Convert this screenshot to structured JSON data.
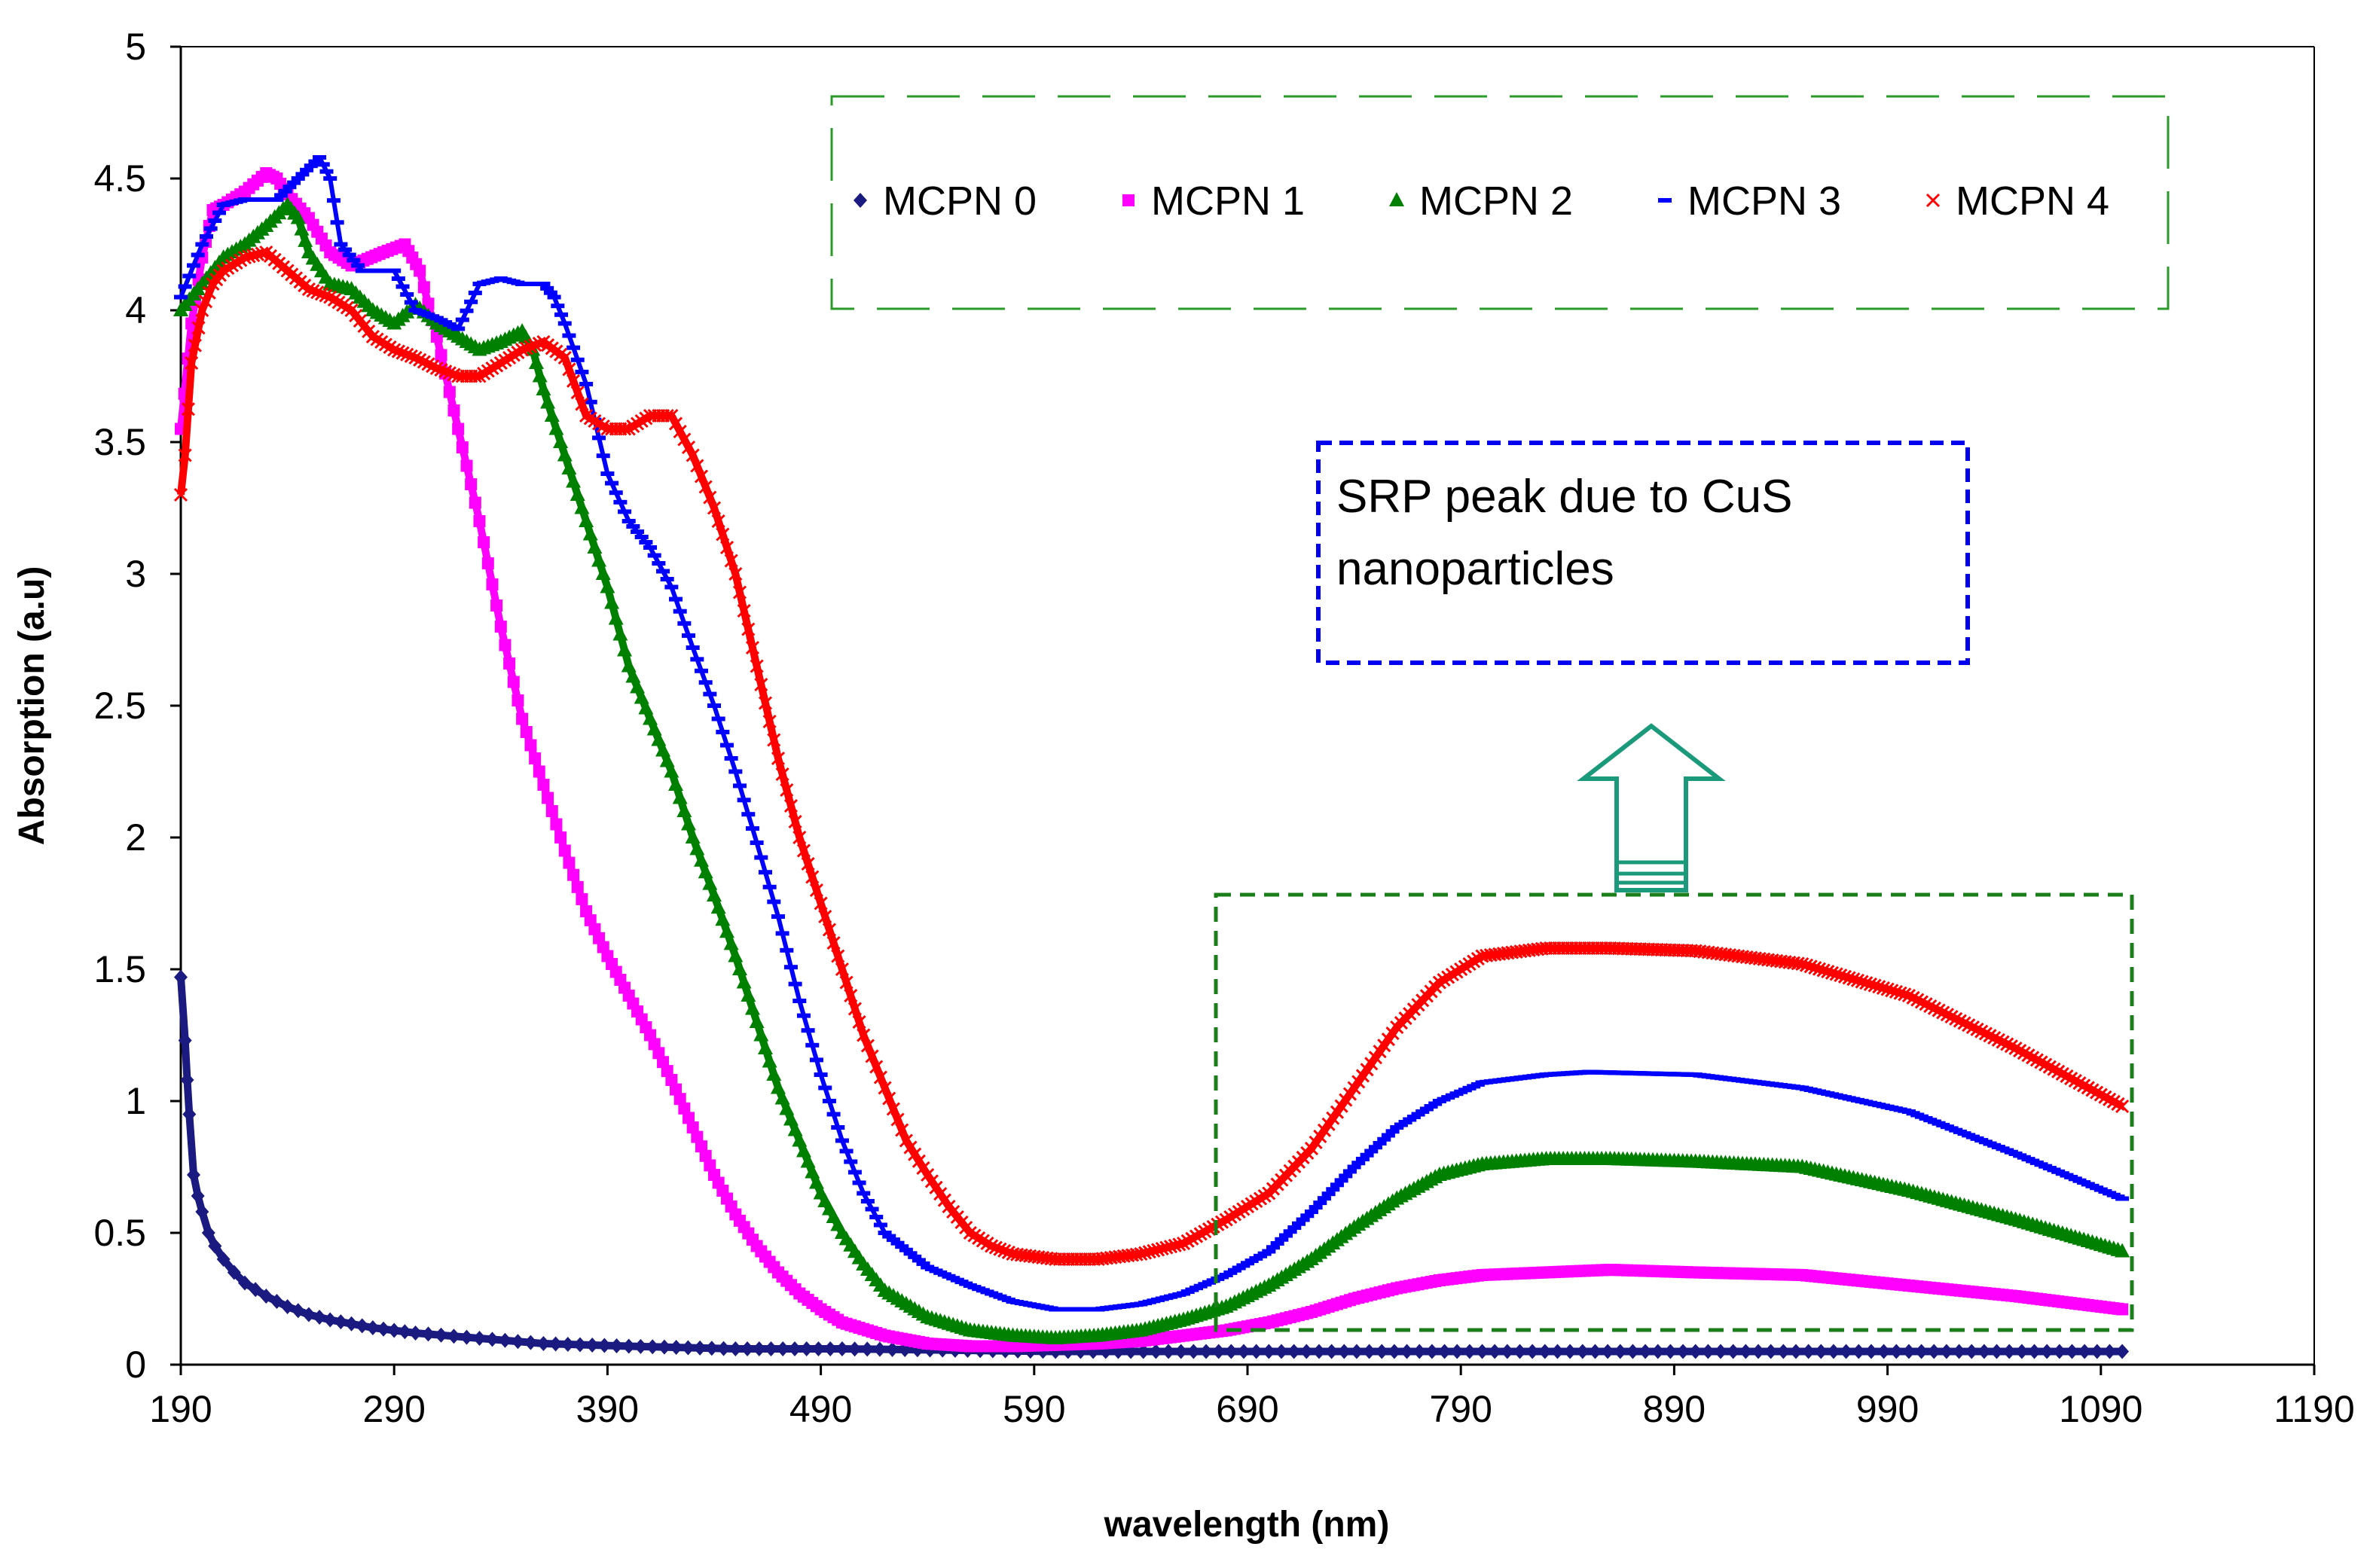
{
  "chart_data": {
    "type": "scatter",
    "title": "",
    "xlabel": "wavelength (nm)",
    "ylabel": "Absorption (a.u)",
    "xlim": [
      190,
      1190
    ],
    "ylim": [
      0,
      5
    ],
    "xticks": [
      190,
      290,
      390,
      490,
      590,
      690,
      790,
      890,
      990,
      1090,
      1190
    ],
    "yticks": [
      0,
      0.5,
      1,
      1.5,
      2,
      2.5,
      3,
      3.5,
      4,
      4.5,
      5
    ],
    "grid": false,
    "legend_position": "top-right",
    "series": [
      {
        "name": "MCPN 0",
        "marker": "diamond",
        "color": "#1a1a80",
        "points": [
          [
            190,
            1.47
          ],
          [
            192,
            1.23
          ],
          [
            193,
            1.08
          ],
          [
            194,
            0.95
          ],
          [
            196,
            0.72
          ],
          [
            198,
            0.64
          ],
          [
            200,
            0.58
          ],
          [
            203,
            0.5
          ],
          [
            206,
            0.45
          ],
          [
            210,
            0.4
          ],
          [
            215,
            0.35
          ],
          [
            220,
            0.31
          ],
          [
            230,
            0.26
          ],
          [
            240,
            0.22
          ],
          [
            250,
            0.19
          ],
          [
            260,
            0.17
          ],
          [
            280,
            0.14
          ],
          [
            300,
            0.12
          ],
          [
            330,
            0.1
          ],
          [
            360,
            0.08
          ],
          [
            400,
            0.07
          ],
          [
            450,
            0.06
          ],
          [
            500,
            0.06
          ],
          [
            600,
            0.05
          ],
          [
            700,
            0.05
          ],
          [
            800,
            0.05
          ],
          [
            900,
            0.05
          ],
          [
            1000,
            0.05
          ],
          [
            1100,
            0.05
          ]
        ]
      },
      {
        "name": "MCPN 1",
        "marker": "square",
        "color": "#ff00ff",
        "points": [
          [
            190,
            3.55
          ],
          [
            195,
            3.95
          ],
          [
            200,
            4.2
          ],
          [
            205,
            4.38
          ],
          [
            210,
            4.4
          ],
          [
            220,
            4.45
          ],
          [
            230,
            4.52
          ],
          [
            235,
            4.5
          ],
          [
            240,
            4.44
          ],
          [
            250,
            4.35
          ],
          [
            260,
            4.22
          ],
          [
            270,
            4.17
          ],
          [
            285,
            4.22
          ],
          [
            295,
            4.25
          ],
          [
            302,
            4.15
          ],
          [
            310,
            3.9
          ],
          [
            320,
            3.55
          ],
          [
            330,
            3.2
          ],
          [
            340,
            2.8
          ],
          [
            350,
            2.45
          ],
          [
            360,
            2.2
          ],
          [
            370,
            1.95
          ],
          [
            380,
            1.72
          ],
          [
            390,
            1.55
          ],
          [
            400,
            1.4
          ],
          [
            410,
            1.25
          ],
          [
            420,
            1.08
          ],
          [
            430,
            0.9
          ],
          [
            440,
            0.72
          ],
          [
            450,
            0.57
          ],
          [
            460,
            0.45
          ],
          [
            470,
            0.35
          ],
          [
            480,
            0.27
          ],
          [
            490,
            0.21
          ],
          [
            500,
            0.16
          ],
          [
            520,
            0.11
          ],
          [
            540,
            0.08
          ],
          [
            560,
            0.07
          ],
          [
            580,
            0.07
          ],
          [
            600,
            0.075
          ],
          [
            620,
            0.08
          ],
          [
            640,
            0.09
          ],
          [
            660,
            0.11
          ],
          [
            680,
            0.13
          ],
          [
            700,
            0.16
          ],
          [
            720,
            0.2
          ],
          [
            740,
            0.25
          ],
          [
            760,
            0.29
          ],
          [
            780,
            0.32
          ],
          [
            800,
            0.34
          ],
          [
            830,
            0.35
          ],
          [
            860,
            0.36
          ],
          [
            900,
            0.35
          ],
          [
            950,
            0.34
          ],
          [
            1000,
            0.3
          ],
          [
            1050,
            0.26
          ],
          [
            1100,
            0.21
          ]
        ]
      },
      {
        "name": "MCPN 2",
        "marker": "triangle",
        "color": "#008000",
        "points": [
          [
            190,
            4.0
          ],
          [
            200,
            4.1
          ],
          [
            210,
            4.2
          ],
          [
            220,
            4.25
          ],
          [
            230,
            4.32
          ],
          [
            240,
            4.4
          ],
          [
            245,
            4.35
          ],
          [
            250,
            4.22
          ],
          [
            260,
            4.1
          ],
          [
            270,
            4.08
          ],
          [
            280,
            4.0
          ],
          [
            290,
            3.95
          ],
          [
            300,
            4.02
          ],
          [
            310,
            3.95
          ],
          [
            320,
            3.9
          ],
          [
            330,
            3.85
          ],
          [
            340,
            3.88
          ],
          [
            350,
            3.92
          ],
          [
            355,
            3.85
          ],
          [
            360,
            3.7
          ],
          [
            370,
            3.45
          ],
          [
            380,
            3.2
          ],
          [
            390,
            2.95
          ],
          [
            400,
            2.65
          ],
          [
            410,
            2.45
          ],
          [
            420,
            2.25
          ],
          [
            430,
            2.0
          ],
          [
            440,
            1.78
          ],
          [
            450,
            1.55
          ],
          [
            460,
            1.3
          ],
          [
            470,
            1.05
          ],
          [
            480,
            0.85
          ],
          [
            490,
            0.65
          ],
          [
            500,
            0.5
          ],
          [
            510,
            0.38
          ],
          [
            520,
            0.28
          ],
          [
            540,
            0.18
          ],
          [
            560,
            0.13
          ],
          [
            580,
            0.11
          ],
          [
            600,
            0.1
          ],
          [
            620,
            0.11
          ],
          [
            640,
            0.13
          ],
          [
            660,
            0.17
          ],
          [
            680,
            0.22
          ],
          [
            700,
            0.3
          ],
          [
            720,
            0.4
          ],
          [
            740,
            0.52
          ],
          [
            760,
            0.63
          ],
          [
            780,
            0.72
          ],
          [
            800,
            0.76
          ],
          [
            830,
            0.78
          ],
          [
            860,
            0.78
          ],
          [
            900,
            0.77
          ],
          [
            950,
            0.75
          ],
          [
            1000,
            0.66
          ],
          [
            1050,
            0.55
          ],
          [
            1100,
            0.43
          ]
        ]
      },
      {
        "name": "MCPN 3",
        "marker": "dash",
        "color": "#0000ff",
        "points": [
          [
            190,
            4.05
          ],
          [
            200,
            4.25
          ],
          [
            210,
            4.4
          ],
          [
            220,
            4.42
          ],
          [
            235,
            4.42
          ],
          [
            245,
            4.5
          ],
          [
            255,
            4.58
          ],
          [
            260,
            4.5
          ],
          [
            265,
            4.25
          ],
          [
            275,
            4.15
          ],
          [
            290,
            4.15
          ],
          [
            300,
            4.0
          ],
          [
            310,
            3.97
          ],
          [
            320,
            3.93
          ],
          [
            330,
            4.1
          ],
          [
            340,
            4.12
          ],
          [
            350,
            4.1
          ],
          [
            360,
            4.1
          ],
          [
            365,
            4.05
          ],
          [
            370,
            3.95
          ],
          [
            380,
            3.72
          ],
          [
            390,
            3.38
          ],
          [
            400,
            3.2
          ],
          [
            410,
            3.1
          ],
          [
            420,
            2.95
          ],
          [
            430,
            2.72
          ],
          [
            440,
            2.5
          ],
          [
            450,
            2.25
          ],
          [
            460,
            1.98
          ],
          [
            470,
            1.7
          ],
          [
            480,
            1.38
          ],
          [
            490,
            1.1
          ],
          [
            500,
            0.85
          ],
          [
            510,
            0.65
          ],
          [
            520,
            0.5
          ],
          [
            540,
            0.37
          ],
          [
            560,
            0.3
          ],
          [
            580,
            0.24
          ],
          [
            600,
            0.21
          ],
          [
            620,
            0.21
          ],
          [
            640,
            0.23
          ],
          [
            660,
            0.27
          ],
          [
            680,
            0.34
          ],
          [
            700,
            0.43
          ],
          [
            720,
            0.58
          ],
          [
            740,
            0.75
          ],
          [
            760,
            0.9
          ],
          [
            780,
            1.0
          ],
          [
            800,
            1.07
          ],
          [
            830,
            1.1
          ],
          [
            850,
            1.11
          ],
          [
            900,
            1.1
          ],
          [
            950,
            1.05
          ],
          [
            1000,
            0.96
          ],
          [
            1050,
            0.8
          ],
          [
            1100,
            0.63
          ]
        ]
      },
      {
        "name": "MCPN 4",
        "marker": "x",
        "color": "#ff0000",
        "points": [
          [
            190,
            3.3
          ],
          [
            192,
            3.45
          ],
          [
            195,
            3.8
          ],
          [
            200,
            4.0
          ],
          [
            205,
            4.1
          ],
          [
            210,
            4.15
          ],
          [
            220,
            4.2
          ],
          [
            230,
            4.22
          ],
          [
            240,
            4.15
          ],
          [
            250,
            4.08
          ],
          [
            260,
            4.05
          ],
          [
            270,
            4.0
          ],
          [
            280,
            3.9
          ],
          [
            290,
            3.85
          ],
          [
            300,
            3.82
          ],
          [
            310,
            3.78
          ],
          [
            320,
            3.75
          ],
          [
            330,
            3.75
          ],
          [
            340,
            3.8
          ],
          [
            350,
            3.85
          ],
          [
            360,
            3.88
          ],
          [
            370,
            3.82
          ],
          [
            380,
            3.6
          ],
          [
            390,
            3.55
          ],
          [
            400,
            3.55
          ],
          [
            410,
            3.6
          ],
          [
            420,
            3.6
          ],
          [
            430,
            3.45
          ],
          [
            440,
            3.25
          ],
          [
            450,
            3.0
          ],
          [
            460,
            2.65
          ],
          [
            470,
            2.3
          ],
          [
            480,
            2.0
          ],
          [
            490,
            1.75
          ],
          [
            500,
            1.5
          ],
          [
            510,
            1.25
          ],
          [
            520,
            1.05
          ],
          [
            530,
            0.85
          ],
          [
            540,
            0.72
          ],
          [
            550,
            0.6
          ],
          [
            560,
            0.5
          ],
          [
            570,
            0.45
          ],
          [
            580,
            0.42
          ],
          [
            600,
            0.4
          ],
          [
            620,
            0.4
          ],
          [
            640,
            0.42
          ],
          [
            660,
            0.46
          ],
          [
            680,
            0.55
          ],
          [
            700,
            0.65
          ],
          [
            720,
            0.82
          ],
          [
            740,
            1.05
          ],
          [
            760,
            1.28
          ],
          [
            780,
            1.45
          ],
          [
            800,
            1.55
          ],
          [
            830,
            1.58
          ],
          [
            860,
            1.58
          ],
          [
            900,
            1.57
          ],
          [
            950,
            1.52
          ],
          [
            1000,
            1.4
          ],
          [
            1050,
            1.2
          ],
          [
            1100,
            0.98
          ]
        ]
      }
    ],
    "annotations": [
      {
        "text_lines": [
          "SRP peak due to CuS",
          "nanoparticles"
        ]
      }
    ]
  }
}
